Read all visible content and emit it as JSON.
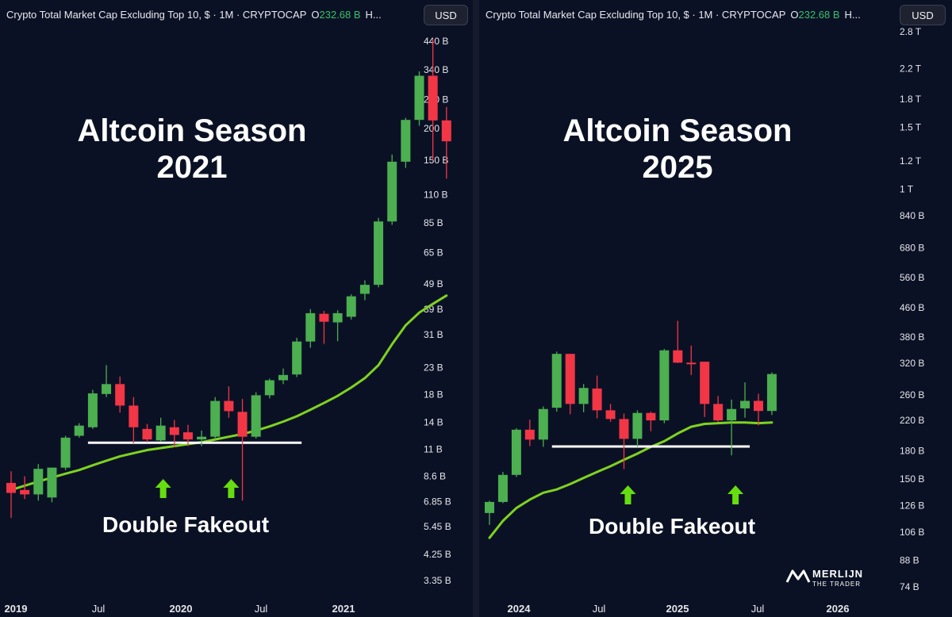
{
  "left": {
    "header": {
      "title": "Crypto Total Market Cap Excluding Top 10, $ · 1M · CRYPTOCAP",
      "o_label": "O",
      "o_value": "232.68 B",
      "h_label": "H..."
    },
    "currency": "USD",
    "title_line1": "Altcoin Season",
    "title_line2": "2021",
    "annotation": "Double Fakeout"
  },
  "right": {
    "header": {
      "title": "Crypto Total Market Cap Excluding Top 10, $ · 1M · CRYPTOCAP",
      "o_label": "O",
      "o_value": "232.68 B",
      "h_label": "H..."
    },
    "currency": "USD",
    "title_line1": "Altcoin Season",
    "title_line2": "2025",
    "annotation": "Double Fakeout"
  },
  "logo": {
    "name": "MERLIJN",
    "sub": "THE TRADER"
  },
  "colors": {
    "up": "#4caf50",
    "down": "#f23645",
    "ma": "#7ed321",
    "arrow": "#66dd11",
    "support": "#ffffff",
    "background": "#0b1125"
  },
  "chart_data": [
    {
      "type": "candlestick",
      "title": "Altcoin Season 2021",
      "scale": "log",
      "y_ticks": [
        "440 B",
        "340 B",
        "260 B",
        "200 B",
        "150 B",
        "110 B",
        "85 B",
        "65 B",
        "49 B",
        "39 B",
        "31 B",
        "23 B",
        "18 B",
        "14 B",
        "11 B",
        "8.6 B",
        "6.85 B",
        "5.45 B",
        "4.25 B",
        "3.35 B"
      ],
      "x_ticks": [
        "2019",
        "Jul",
        "2020",
        "Jul",
        "2021"
      ],
      "tick_values_b": [
        440,
        340,
        260,
        200,
        150,
        110,
        85,
        65,
        49,
        39,
        31,
        23,
        18,
        14,
        11,
        8.6,
        6.85,
        5.45,
        4.25,
        3.35
      ],
      "ylim_b": [
        3.0,
        520
      ],
      "candles": [
        {
          "o": 8.1,
          "h": 9.0,
          "l": 5.9,
          "c": 7.4
        },
        {
          "o": 7.6,
          "h": 8.6,
          "l": 7.0,
          "c": 7.3
        },
        {
          "o": 7.3,
          "h": 9.6,
          "l": 6.9,
          "c": 9.2
        },
        {
          "o": 7.1,
          "h": 9.3,
          "l": 6.8,
          "c": 9.3
        },
        {
          "o": 9.3,
          "h": 12.4,
          "l": 9.1,
          "c": 12.2
        },
        {
          "o": 12.4,
          "h": 13.9,
          "l": 12.2,
          "c": 13.6
        },
        {
          "o": 13.4,
          "h": 18.8,
          "l": 13.2,
          "c": 18.2
        },
        {
          "o": 18.1,
          "h": 23.5,
          "l": 17.6,
          "c": 19.8
        },
        {
          "o": 19.8,
          "h": 21.2,
          "l": 15.3,
          "c": 16.3
        },
        {
          "o": 16.3,
          "h": 17.6,
          "l": 11.6,
          "c": 13.4
        },
        {
          "o": 13.2,
          "h": 13.8,
          "l": 11.7,
          "c": 12.0
        },
        {
          "o": 11.9,
          "h": 14.6,
          "l": 11.8,
          "c": 13.6
        },
        {
          "o": 13.4,
          "h": 14.3,
          "l": 11.2,
          "c": 12.5
        },
        {
          "o": 12.8,
          "h": 13.7,
          "l": 11.3,
          "c": 12.0
        },
        {
          "o": 12.0,
          "h": 13.0,
          "l": 11.3,
          "c": 12.3
        },
        {
          "o": 12.3,
          "h": 17.6,
          "l": 12.0,
          "c": 17.0
        },
        {
          "o": 17.0,
          "h": 19.4,
          "l": 14.6,
          "c": 15.5
        },
        {
          "o": 15.4,
          "h": 17.3,
          "l": 6.9,
          "c": 12.3
        },
        {
          "o": 12.3,
          "h": 18.4,
          "l": 12.1,
          "c": 17.9
        },
        {
          "o": 17.9,
          "h": 20.8,
          "l": 17.4,
          "c": 20.5
        },
        {
          "o": 20.5,
          "h": 22.8,
          "l": 19.8,
          "c": 21.5
        },
        {
          "o": 21.6,
          "h": 30.1,
          "l": 21.1,
          "c": 29.1
        },
        {
          "o": 29.1,
          "h": 39.0,
          "l": 27.5,
          "c": 37.6
        },
        {
          "o": 37.4,
          "h": 38.4,
          "l": 28.5,
          "c": 34.8
        },
        {
          "o": 34.6,
          "h": 38.6,
          "l": 29.2,
          "c": 37.6
        },
        {
          "o": 36.4,
          "h": 44.6,
          "l": 35.5,
          "c": 43.8
        },
        {
          "o": 44.8,
          "h": 50.6,
          "l": 42.3,
          "c": 48.6
        },
        {
          "o": 48.6,
          "h": 89.0,
          "l": 47.5,
          "c": 86.2
        },
        {
          "o": 86.2,
          "h": 158.0,
          "l": 83.6,
          "c": 148.0
        },
        {
          "o": 148.0,
          "h": 220.0,
          "l": 140.0,
          "c": 216.0
        },
        {
          "o": 216.0,
          "h": 335.0,
          "l": 205.0,
          "c": 322.0
        },
        {
          "o": 322.0,
          "h": 450.0,
          "l": 150.0,
          "c": 215.0
        },
        {
          "o": 215.0,
          "h": 243.0,
          "l": 127.0,
          "c": 178.0
        }
      ],
      "ma": [
        7.6,
        7.9,
        8.2,
        8.5,
        8.8,
        9.1,
        9.5,
        9.9,
        10.3,
        10.6,
        10.9,
        11.1,
        11.3,
        11.5,
        11.7,
        12.0,
        12.3,
        12.6,
        13.0,
        13.5,
        14.1,
        14.8,
        15.7,
        16.7,
        17.8,
        19.2,
        20.9,
        23.5,
        28.4,
        33.7,
        37.8,
        40.9,
        44.1
      ],
      "support_level_b": 11.65,
      "support_candle_range": [
        6,
        21
      ],
      "arrows_at_candle": [
        11,
        16
      ]
    },
    {
      "type": "candlestick",
      "title": "Altcoin Season 2025",
      "scale": "log",
      "y_ticks": [
        "2.8 T",
        "2.2 T",
        "1.8 T",
        "1.5 T",
        "1.2 T",
        "1 T",
        "840 B",
        "680 B",
        "560 B",
        "460 B",
        "380 B",
        "320 B",
        "260 B",
        "220 B",
        "180 B",
        "150 B",
        "126 B",
        "106 B",
        "88 B",
        "74 B"
      ],
      "x_ticks": [
        "2024",
        "Jul",
        "2025",
        "Jul",
        "2026"
      ],
      "tick_values_b": [
        2800,
        2200,
        1800,
        1500,
        1200,
        1000,
        840,
        680,
        560,
        460,
        380,
        320,
        260,
        220,
        180,
        150,
        126,
        106,
        88,
        74
      ],
      "ylim_b": [
        70,
        3000
      ],
      "candles": [
        {
          "o": 120,
          "h": 130,
          "l": 111,
          "c": 129
        },
        {
          "o": 129,
          "h": 157,
          "l": 128,
          "c": 154
        },
        {
          "o": 154,
          "h": 209,
          "l": 152,
          "c": 207
        },
        {
          "o": 207,
          "h": 221,
          "l": 186,
          "c": 194
        },
        {
          "o": 194,
          "h": 241,
          "l": 185,
          "c": 237
        },
        {
          "o": 239,
          "h": 345,
          "l": 233,
          "c": 340
        },
        {
          "o": 340,
          "h": 340,
          "l": 229,
          "c": 245
        },
        {
          "o": 245,
          "h": 279,
          "l": 232,
          "c": 272
        },
        {
          "o": 271,
          "h": 295,
          "l": 223,
          "c": 235
        },
        {
          "o": 235,
          "h": 245,
          "l": 218,
          "c": 222
        },
        {
          "o": 222,
          "h": 230,
          "l": 160,
          "c": 195
        },
        {
          "o": 195,
          "h": 235,
          "l": 185,
          "c": 231
        },
        {
          "o": 231,
          "h": 233,
          "l": 205,
          "c": 220
        },
        {
          "o": 220,
          "h": 351,
          "l": 216,
          "c": 348
        },
        {
          "o": 348,
          "h": 422,
          "l": 320,
          "c": 321
        },
        {
          "o": 321,
          "h": 359,
          "l": 296,
          "c": 319
        },
        {
          "o": 323,
          "h": 323,
          "l": 225,
          "c": 245
        },
        {
          "o": 245,
          "h": 258,
          "l": 218,
          "c": 220
        },
        {
          "o": 220,
          "h": 252,
          "l": 175,
          "c": 237
        },
        {
          "o": 238,
          "h": 282,
          "l": 224,
          "c": 250
        },
        {
          "o": 250,
          "h": 262,
          "l": 213,
          "c": 234
        },
        {
          "o": 234,
          "h": 301,
          "l": 228,
          "c": 298
        }
      ],
      "ma": [
        102,
        114,
        124,
        131,
        137,
        140,
        145,
        151,
        157,
        163,
        170,
        177,
        185,
        192,
        202,
        211,
        215,
        216,
        217,
        217,
        216,
        217
      ],
      "support_level_b": 185.5,
      "support_candle_range": [
        5,
        19
      ],
      "arrows_at_candle": [
        10,
        18
      ]
    }
  ]
}
